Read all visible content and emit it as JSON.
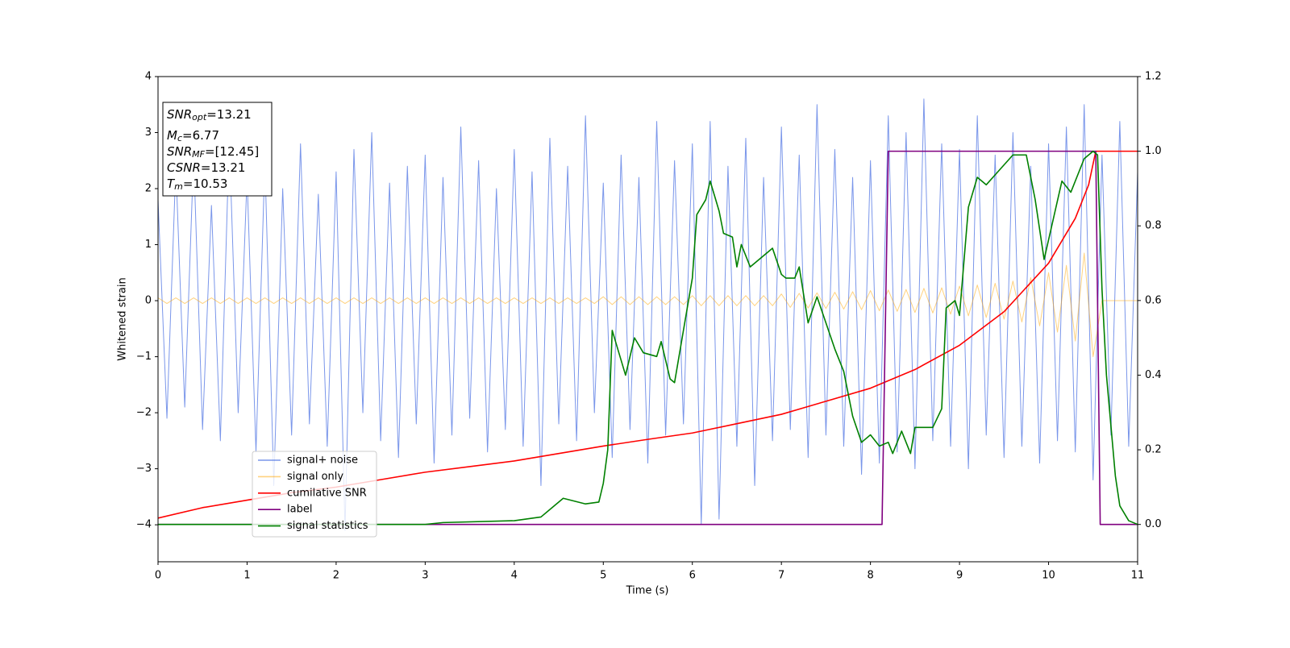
{
  "chart_data": {
    "type": "line",
    "xlabel": "Time (s)",
    "ylabel": "Whitened strain",
    "xlim": [
      0,
      11
    ],
    "xticks": [
      0,
      1,
      2,
      3,
      4,
      5,
      6,
      7,
      8,
      9,
      10,
      11
    ],
    "ylim": [
      -4.66,
      4
    ],
    "yticks": [
      {
        "value": -4,
        "label": "−4"
      },
      {
        "value": -3,
        "label": "−3"
      },
      {
        "value": -2,
        "label": "−2"
      },
      {
        "value": -1,
        "label": "−1"
      },
      0,
      1,
      2,
      3,
      4
    ],
    "y2lim": [
      -0.1,
      1.2
    ],
    "y2ticks": [
      {
        "value": 0,
        "label": "0.0"
      },
      0.2,
      0.4,
      0.6,
      0.8,
      {
        "value": 1,
        "label": "1.0"
      },
      1.2
    ],
    "annotations": [
      {
        "base": "SNR",
        "sub": "opt",
        "rest": "=13.21"
      },
      {
        "base": "M",
        "sub": "c",
        "rest": "=6.77"
      },
      {
        "base": "SNR",
        "sub": "MF",
        "rest": "=[12.45]"
      },
      {
        "base": "CSNR",
        "sub": null,
        "rest": "=13.21"
      },
      {
        "base": "T",
        "sub": "m",
        "rest": "=10.53"
      }
    ],
    "series": [
      {
        "name": "signal+ noise",
        "color": "#4169e1",
        "opacity": 0.7,
        "x": [
          0,
          0.1,
          0.2,
          0.3,
          0.4,
          0.5,
          0.6,
          0.7,
          0.8,
          0.9,
          1,
          1.1,
          1.2,
          1.3,
          1.4,
          1.5,
          1.6,
          1.7,
          1.8,
          1.9,
          2,
          2.1,
          2.2,
          2.3,
          2.4,
          2.5,
          2.6,
          2.7,
          2.8,
          2.9,
          3,
          3.1,
          3.2,
          3.3,
          3.4,
          3.5,
          3.6,
          3.7,
          3.8,
          3.9,
          4,
          4.1,
          4.2,
          4.3,
          4.4,
          4.5,
          4.6,
          4.7,
          4.8,
          4.9,
          5,
          5.1,
          5.2,
          5.3,
          5.4,
          5.5,
          5.6,
          5.7,
          5.8,
          5.9,
          6,
          6.1,
          6.2,
          6.3,
          6.4,
          6.5,
          6.6,
          6.7,
          6.8,
          6.9,
          7,
          7.1,
          7.2,
          7.3,
          7.4,
          7.5,
          7.6,
          7.7,
          7.8,
          7.9,
          8,
          8.1,
          8.2,
          8.3,
          8.4,
          8.5,
          8.6,
          8.7,
          8.8,
          8.9,
          9,
          9.1,
          9.2,
          9.3,
          9.4,
          9.5,
          9.6,
          9.7,
          9.8,
          9.9,
          10,
          10.1,
          10.2,
          10.3,
          10.4,
          10.5,
          10.6,
          10.7,
          10.8,
          10.9,
          11
        ],
        "values": [
          1.8,
          -2.1,
          2.4,
          -1.9,
          2.6,
          -2.3,
          1.7,
          -2.5,
          2.9,
          -2.0,
          2.2,
          -2.7,
          2.5,
          -3.3,
          2.0,
          -2.4,
          2.8,
          -2.2,
          1.9,
          -2.6,
          2.3,
          -4.1,
          2.7,
          -2.0,
          3.0,
          -2.5,
          2.1,
          -2.8,
          2.4,
          -2.2,
          2.6,
          -2.9,
          2.2,
          -2.4,
          3.1,
          -2.1,
          2.5,
          -2.7,
          2.0,
          -2.3,
          2.7,
          -2.6,
          2.3,
          -3.3,
          2.9,
          -2.2,
          2.4,
          -2.5,
          3.3,
          -2.0,
          2.1,
          -2.8,
          2.6,
          -2.3,
          2.2,
          -2.9,
          3.2,
          -2.4,
          2.5,
          -2.2,
          2.8,
          -4.0,
          3.2,
          -3.9,
          2.4,
          -2.6,
          2.9,
          -3.3,
          2.2,
          -2.5,
          3.1,
          -2.3,
          2.6,
          -2.8,
          3.5,
          -2.4,
          2.7,
          -2.6,
          2.2,
          -3.1,
          2.5,
          -2.9,
          3.3,
          -2.7,
          3.0,
          -3.0,
          3.6,
          -2.5,
          2.8,
          -2.6,
          2.7,
          -3.0,
          3.3,
          -2.4,
          2.6,
          -2.8,
          3.0,
          -2.6,
          2.4,
          -2.9,
          2.8,
          -2.5,
          3.1,
          -2.7,
          3.5,
          -3.2,
          2.6,
          -2.4,
          3.2,
          -2.6,
          2.3
        ]
      },
      {
        "name": "signal only",
        "color": "#ffa500",
        "opacity": 0.5,
        "x": [
          0,
          0.1,
          0.2,
          0.3,
          0.4,
          0.5,
          0.6,
          0.7,
          0.8,
          0.9,
          1,
          1.1,
          1.2,
          1.3,
          1.4,
          1.5,
          1.6,
          1.7,
          1.8,
          1.9,
          2,
          2.1,
          2.2,
          2.3,
          2.4,
          2.5,
          2.6,
          2.7,
          2.8,
          2.9,
          3,
          3.1,
          3.2,
          3.3,
          3.4,
          3.5,
          3.6,
          3.7,
          3.8,
          3.9,
          4,
          4.1,
          4.2,
          4.3,
          4.4,
          4.5,
          4.6,
          4.7,
          4.8,
          4.9,
          5,
          5.1,
          5.2,
          5.3,
          5.4,
          5.5,
          5.6,
          5.7,
          5.8,
          5.9,
          6,
          6.1,
          6.2,
          6.3,
          6.4,
          6.5,
          6.6,
          6.7,
          6.8,
          6.9,
          7,
          7.1,
          7.2,
          7.3,
          7.4,
          7.5,
          7.6,
          7.7,
          7.8,
          7.9,
          8,
          8.1,
          8.2,
          8.3,
          8.4,
          8.5,
          8.6,
          8.7,
          8.8,
          8.9,
          9,
          9.1,
          9.2,
          9.3,
          9.4,
          9.5,
          9.6,
          9.7,
          9.8,
          9.9,
          10,
          10.1,
          10.2,
          10.3,
          10.4,
          10.5,
          10.6,
          10.7,
          10.8,
          10.9,
          11
        ],
        "values": [
          0.05,
          -0.05,
          0.05,
          -0.05,
          0.05,
          -0.05,
          0.05,
          -0.05,
          0.05,
          -0.05,
          0.05,
          -0.05,
          0.05,
          -0.05,
          0.05,
          -0.05,
          0.05,
          -0.05,
          0.05,
          -0.05,
          0.05,
          -0.05,
          0.05,
          -0.05,
          0.05,
          -0.05,
          0.05,
          -0.05,
          0.05,
          -0.05,
          0.05,
          -0.05,
          0.05,
          -0.05,
          0.05,
          -0.05,
          0.05,
          -0.05,
          0.05,
          -0.05,
          0.05,
          -0.05,
          0.05,
          -0.05,
          0.05,
          -0.05,
          0.05,
          -0.05,
          0.05,
          -0.05,
          0.07,
          -0.07,
          0.07,
          -0.07,
          0.07,
          -0.07,
          0.07,
          -0.07,
          0.07,
          -0.07,
          0.09,
          -0.09,
          0.09,
          -0.09,
          0.09,
          -0.09,
          0.09,
          -0.09,
          0.09,
          -0.09,
          0.12,
          -0.12,
          0.13,
          -0.13,
          0.14,
          -0.14,
          0.15,
          -0.15,
          0.16,
          -0.16,
          0.18,
          -0.18,
          0.19,
          -0.19,
          0.2,
          -0.21,
          0.22,
          -0.22,
          0.23,
          -0.24,
          0.26,
          -0.27,
          0.28,
          -0.3,
          0.31,
          -0.33,
          0.35,
          -0.38,
          0.41,
          -0.45,
          0.5,
          -0.56,
          0.63,
          -0.72,
          0.85,
          -1.0,
          0,
          0,
          0,
          0,
          0
        ]
      },
      {
        "name": "cumilative SNR",
        "color": "#ff0000",
        "axis": "y2",
        "x": [
          0,
          0.5,
          1,
          1.5,
          2,
          2.5,
          3,
          3.5,
          4,
          4.5,
          5,
          5.5,
          6,
          6.5,
          7,
          7.5,
          8,
          8.5,
          9,
          9.5,
          10,
          10.3,
          10.45,
          10.53,
          11
        ],
        "values": [
          0.017,
          0.045,
          0.065,
          0.085,
          0.1,
          0.12,
          0.14,
          0.155,
          0.17,
          0.19,
          0.21,
          0.228,
          0.245,
          0.27,
          0.295,
          0.33,
          0.365,
          0.415,
          0.48,
          0.57,
          0.7,
          0.82,
          0.91,
          1.0,
          1.0
        ]
      },
      {
        "name": "label",
        "color": "#800080",
        "axis": "y2",
        "x": [
          0,
          8.13,
          8.2,
          10.53,
          10.58,
          11
        ],
        "values": [
          0,
          0,
          1,
          1,
          0,
          0
        ]
      },
      {
        "name": "signal statistics",
        "color": "#008000",
        "axis": "y2",
        "x": [
          0,
          3,
          3.2,
          4,
          4.3,
          4.55,
          4.8,
          4.95,
          5.0,
          5.05,
          5.1,
          5.2,
          5.25,
          5.35,
          5.45,
          5.6,
          5.65,
          5.75,
          5.8,
          5.9,
          6.0,
          6.05,
          6.15,
          6.2,
          6.3,
          6.35,
          6.45,
          6.5,
          6.55,
          6.65,
          6.7,
          6.8,
          6.9,
          7.0,
          7.05,
          7.15,
          7.2,
          7.3,
          7.4,
          7.5,
          7.6,
          7.7,
          7.8,
          7.9,
          8.0,
          8.1,
          8.2,
          8.25,
          8.35,
          8.45,
          8.5,
          8.6,
          8.7,
          8.8,
          8.85,
          8.95,
          9.0,
          9.1,
          9.2,
          9.3,
          9.45,
          9.6,
          9.75,
          9.85,
          9.95,
          10.15,
          10.25,
          10.4,
          10.5,
          10.55,
          10.6,
          10.65,
          10.75,
          10.8,
          10.9,
          11
        ],
        "values": [
          0,
          0,
          0.005,
          0.01,
          0.02,
          0.07,
          0.055,
          0.06,
          0.11,
          0.2,
          0.52,
          0.44,
          0.4,
          0.5,
          0.46,
          0.45,
          0.49,
          0.39,
          0.38,
          0.52,
          0.66,
          0.83,
          0.87,
          0.92,
          0.84,
          0.78,
          0.77,
          0.69,
          0.75,
          0.69,
          0.7,
          0.72,
          0.74,
          0.67,
          0.66,
          0.66,
          0.69,
          0.54,
          0.61,
          0.54,
          0.47,
          0.41,
          0.29,
          0.22,
          0.24,
          0.21,
          0.22,
          0.19,
          0.25,
          0.19,
          0.26,
          0.26,
          0.26,
          0.31,
          0.58,
          0.6,
          0.56,
          0.85,
          0.93,
          0.91,
          0.95,
          0.99,
          0.99,
          0.87,
          0.71,
          0.92,
          0.89,
          0.98,
          1.0,
          0.99,
          0.63,
          0.4,
          0.13,
          0.05,
          0.01,
          0
        ]
      }
    ]
  }
}
